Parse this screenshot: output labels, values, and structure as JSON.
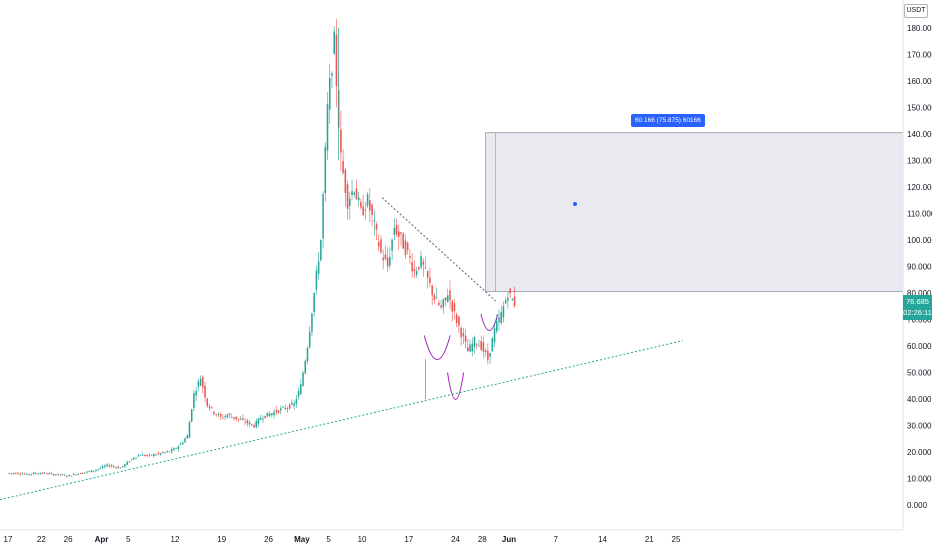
{
  "header": {
    "currency": "USDT"
  },
  "price_tag": {
    "price": "76.685",
    "countdown": "02:26:11"
  },
  "measure_tool": {
    "label": "60.166 (75.875) 60166"
  },
  "colors": {
    "up": "#26a69a",
    "down": "#ef5350",
    "trendline": "#26a69a",
    "resistance": "#5d606b",
    "arc": "#9c27b0",
    "shaded": "#e0e3eb",
    "accent": "#2962ff"
  },
  "chart_data": {
    "type": "candlestick",
    "ylabel": "",
    "xlabel": "",
    "ylim": [
      -8,
      184
    ],
    "y_ticks": [
      "0.000",
      "10.000",
      "20.000",
      "30.000",
      "40.000",
      "50.000",
      "60.000",
      "70.000",
      "80.000",
      "90.000",
      "100.000",
      "110.000",
      "120.000",
      "130.000",
      "140.000",
      "150.000",
      "160.000",
      "170.000",
      "180.000"
    ],
    "x_ticks": [
      "17",
      "22",
      "26",
      "Apr",
      "5",
      "12",
      "19",
      "26",
      "May",
      "5",
      "10",
      "17",
      "24",
      "28",
      "Jun",
      "7",
      "14",
      "21",
      "25"
    ],
    "x_tick_day_index": [
      0,
      5,
      9,
      14,
      18,
      25,
      32,
      39,
      44,
      48,
      53,
      60,
      67,
      71,
      75,
      82,
      89,
      96,
      100
    ],
    "dates": "daily from Mar 17 to May 28",
    "price_series_approx": [
      12,
      12,
      12,
      11.5,
      12,
      12,
      12,
      11.5,
      11.5,
      11,
      11.5,
      12,
      12.5,
      13,
      14,
      15,
      14.5,
      14,
      16,
      18,
      19,
      18.5,
      19,
      19.5,
      20,
      21,
      23,
      26,
      42,
      48,
      38,
      35,
      33,
      34,
      33,
      32,
      31,
      30,
      33,
      34,
      35,
      36,
      37,
      38,
      45,
      60,
      80,
      100,
      150,
      175,
      130,
      115,
      120,
      110,
      115,
      105,
      95,
      90,
      105,
      100,
      95,
      88,
      92,
      85,
      78,
      74,
      80,
      72,
      65,
      58,
      62,
      60,
      55,
      66,
      72,
      80,
      76
    ],
    "annotations": {
      "ascending_support": {
        "from": [
          0,
          2
        ],
        "to": [
          101,
          62
        ]
      },
      "descending_resistance": {
        "from": [
          56,
          116
        ],
        "to": [
          73,
          77
        ]
      },
      "shaded_range": {
        "x_from": 71.5,
        "x_to": 101,
        "y_from": 80.5,
        "y_to": 140.5
      }
    }
  }
}
